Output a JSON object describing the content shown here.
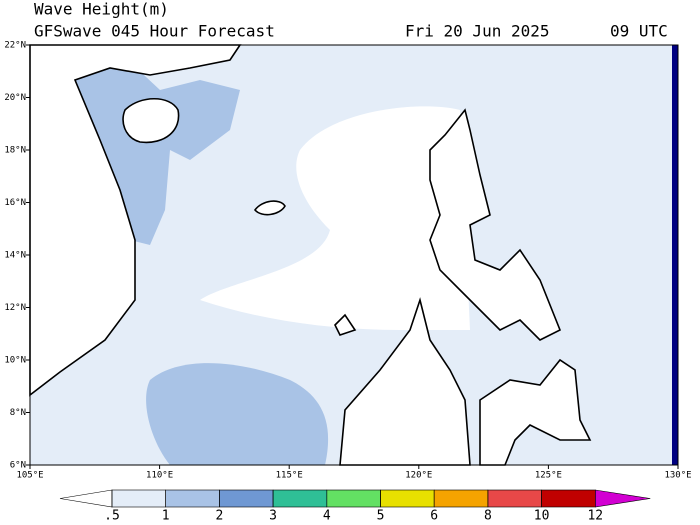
{
  "title": "Wave Height(m)",
  "subtitle": "GFSwave 045 Hour Forecast",
  "date": "Fri 20 Jun 2025",
  "time": "09 UTC",
  "map": {
    "xlim": [
      105,
      130
    ],
    "ylim": [
      6,
      22
    ],
    "xticks": [
      {
        "value": 105,
        "label": "105°E"
      },
      {
        "value": 110,
        "label": "110°E"
      },
      {
        "value": 115,
        "label": "115°E"
      },
      {
        "value": 120,
        "label": "120°E"
      },
      {
        "value": 125,
        "label": "125°E"
      },
      {
        "value": 130,
        "label": "130°E"
      }
    ],
    "yticks": [
      {
        "value": 6,
        "label": "6°N"
      },
      {
        "value": 8,
        "label": "8°N"
      },
      {
        "value": 10,
        "label": "10°N"
      },
      {
        "value": 12,
        "label": "12°N"
      },
      {
        "value": 14,
        "label": "14°N"
      },
      {
        "value": 16,
        "label": "16°N"
      },
      {
        "value": 18,
        "label": "18°N"
      },
      {
        "value": 20,
        "label": "20°N"
      },
      {
        "value": 22,
        "label": "22°N"
      }
    ]
  },
  "colorbar": {
    "colors": [
      "#ffffff",
      "#e4edf8",
      "#a9c3e6",
      "#6f98d3",
      "#2fbf96",
      "#63e063",
      "#e8e000",
      "#f5a300",
      "#e84848",
      "#c00000",
      "#d200d2"
    ],
    "levels": [
      {
        "value": 0.5,
        "label": ".5"
      },
      1,
      2,
      3,
      4,
      5,
      6,
      8,
      10,
      12
    ]
  }
}
